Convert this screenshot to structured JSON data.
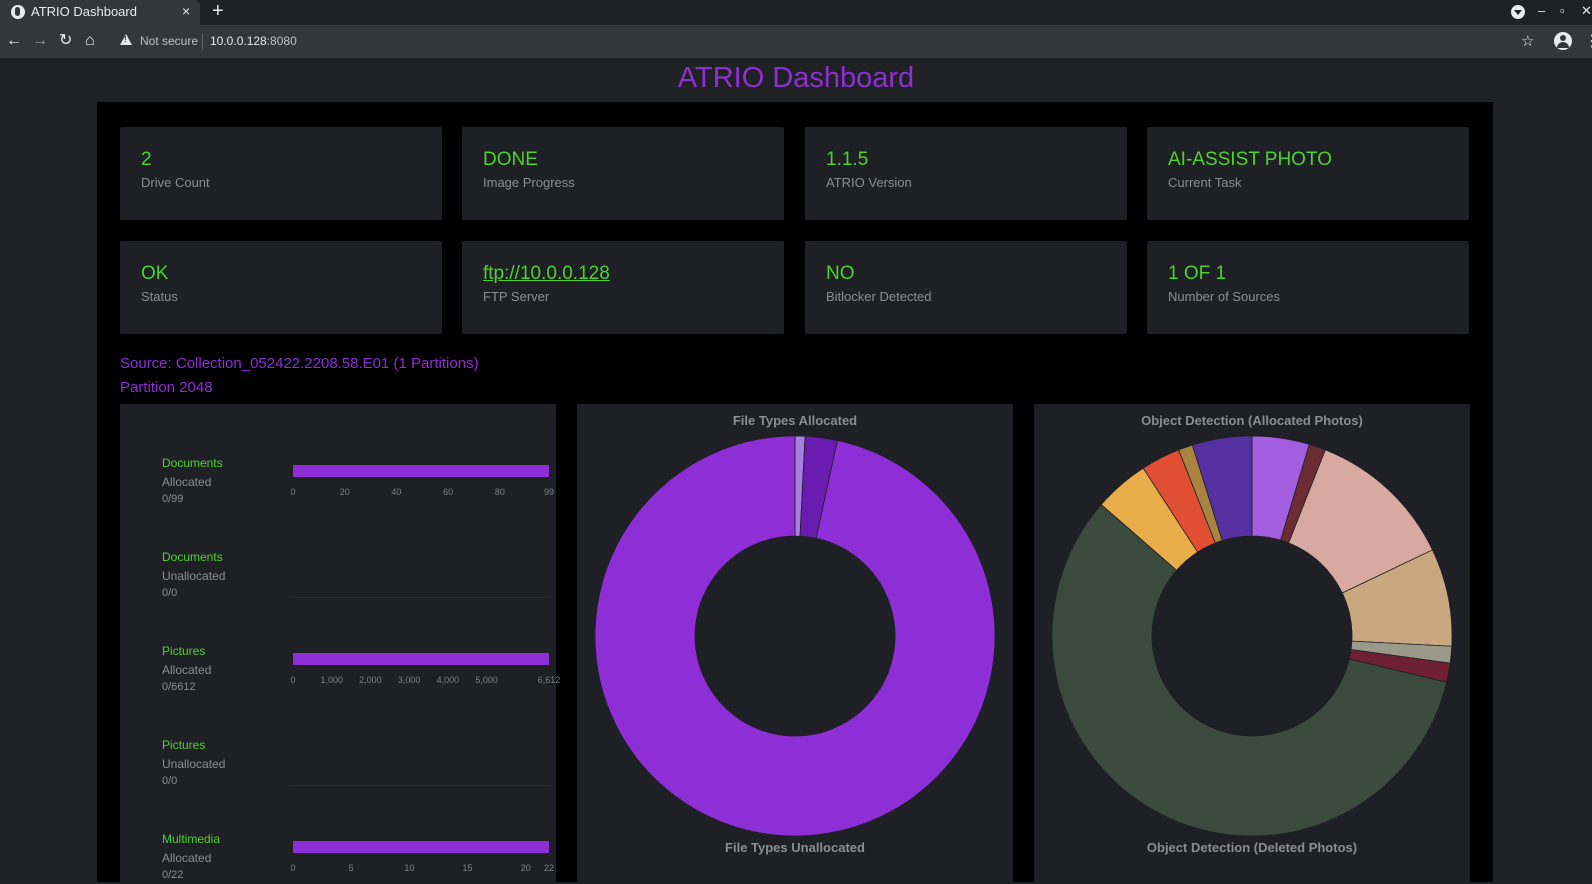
{
  "browser": {
    "tab_title": "ATRIO Dashboard",
    "tab_close": "×",
    "new_tab": "+",
    "not_secure": "Not secure",
    "url_host": "10.0.0.128",
    "url_port": ":8080"
  },
  "page": {
    "title": "ATRIO Dashboard"
  },
  "cards": [
    {
      "value": "2",
      "label": "Drive Count"
    },
    {
      "value": "DONE",
      "label": "Image Progress"
    },
    {
      "value": "1.1.5",
      "label": "ATRIO Version"
    },
    {
      "value": "AI-ASSIST PHOTO",
      "label": "Current Task"
    },
    {
      "value": "OK",
      "label": "Status"
    },
    {
      "value": "ftp://10.0.0.128",
      "label": "FTP Server"
    },
    {
      "value": "NO",
      "label": "Bitlocker Detected"
    },
    {
      "value": "1 OF 1",
      "label": "Number of Sources"
    }
  ],
  "source": {
    "line": "Source: Collection_052422.2208.58.E01 (1 Partitions)",
    "partition": "Partition 2048"
  },
  "bar_charts": [
    {
      "category": "Documents",
      "sub": "Allocated",
      "count": "0/99",
      "value": 99,
      "max": 99,
      "ticks": [
        {
          "label": "0",
          "v": 0
        },
        {
          "label": "20",
          "v": 20
        },
        {
          "label": "40",
          "v": 40
        },
        {
          "label": "60",
          "v": 60
        },
        {
          "label": "80",
          "v": 80
        },
        {
          "label": "99",
          "v": 99
        }
      ]
    },
    {
      "category": "Documents",
      "sub": "Unallocated",
      "count": "0/0",
      "value": 0,
      "max": 0,
      "ticks": []
    },
    {
      "category": "Pictures",
      "sub": "Allocated",
      "count": "0/6612",
      "value": 6612,
      "max": 6612,
      "ticks": [
        {
          "label": "0",
          "v": 0
        },
        {
          "label": "1,000",
          "v": 1000
        },
        {
          "label": "2,000",
          "v": 2000
        },
        {
          "label": "3,000",
          "v": 3000
        },
        {
          "label": "4,000",
          "v": 4000
        },
        {
          "label": "5,000",
          "v": 5000
        },
        {
          "label": "6,612",
          "v": 6612
        }
      ]
    },
    {
      "category": "Pictures",
      "sub": "Unallocated",
      "count": "0/0",
      "value": 0,
      "max": 0,
      "ticks": []
    },
    {
      "category": "Multimedia",
      "sub": "Allocated",
      "count": "0/22",
      "value": 22,
      "max": 22,
      "ticks": [
        {
          "label": "0",
          "v": 0
        },
        {
          "label": "5",
          "v": 5
        },
        {
          "label": "10",
          "v": 10
        },
        {
          "label": "15",
          "v": 15
        },
        {
          "label": "20",
          "v": 20
        },
        {
          "label": "22",
          "v": 22
        }
      ]
    }
  ],
  "chart_data": [
    {
      "type": "pie",
      "title": "File Types Allocated",
      "slices": [
        {
          "value": 0.8,
          "color": "#a97fe0"
        },
        {
          "value": 2.6,
          "color": "#6a1cb0"
        },
        {
          "value": 96.6,
          "color": "#8e2ed6"
        }
      ]
    },
    {
      "type": "pie",
      "title": "Object Detection (Allocated Photos)",
      "slices": [
        {
          "value": 4.8,
          "color": "#a45ee0"
        },
        {
          "value": 1.4,
          "color": "#6b2c34"
        },
        {
          "value": 12.4,
          "color": "#d8a9a0"
        },
        {
          "value": 8.2,
          "color": "#c9a77f"
        },
        {
          "value": 1.4,
          "color": "#9a9a8a"
        },
        {
          "value": 1.6,
          "color": "#6e1f33"
        },
        {
          "value": 59.9,
          "color": "#3a4b3e"
        },
        {
          "value": 4.6,
          "color": "#e8ad48"
        },
        {
          "value": 3.3,
          "color": "#e04e34"
        },
        {
          "value": 1.2,
          "color": "#a8843f"
        },
        {
          "value": 5.0,
          "color": "#5530a0"
        }
      ]
    }
  ],
  "bottom_titles": {
    "file_types_unallocated": "File Types Unallocated",
    "object_detection_deleted": "Object Detection (Deleted Photos)"
  }
}
